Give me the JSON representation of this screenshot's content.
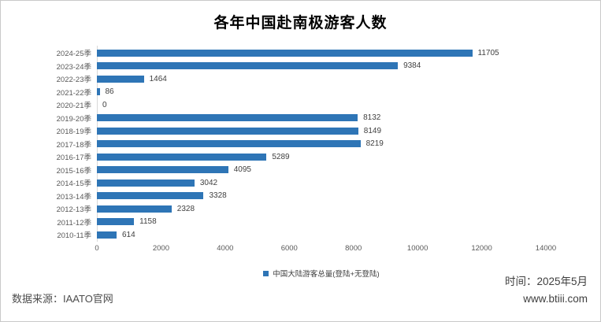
{
  "title": "各年中国赴南极游客人数",
  "chart_data": {
    "type": "bar",
    "orientation": "horizontal",
    "title": "各年中国赴南极游客人数",
    "categories": [
      "2024-25季",
      "2023-24季",
      "2022-23季",
      "2021-22季",
      "2020-21季",
      "2019-20季",
      "2018-19季",
      "2017-18季",
      "2016-17季",
      "2015-16季",
      "2014-15季",
      "2013-14季",
      "2012-13季",
      "2011-12季",
      "2010-11季"
    ],
    "values": [
      11705,
      9384,
      1464,
      86,
      0,
      8132,
      8149,
      8219,
      5289,
      4095,
      3042,
      3328,
      2328,
      1158,
      614
    ],
    "xlabel": "",
    "ylabel": "",
    "xlim": [
      0,
      14000
    ],
    "xticks": [
      0,
      2000,
      4000,
      6000,
      8000,
      10000,
      12000,
      14000
    ],
    "grid": false,
    "legend": [
      "中国大陆游客总量(登陆+无登陆)"
    ],
    "legend_position": "bottom",
    "bar_color": "#2E75B6"
  },
  "footer": {
    "source": "数据来源：IAATO官网",
    "time": "时间：2025年5月",
    "website": "www.btiii.com"
  },
  "colors": {
    "bar": "#2E75B6",
    "axis_text": "#595959",
    "value_text": "#404040",
    "border": "#c9c9c9"
  }
}
